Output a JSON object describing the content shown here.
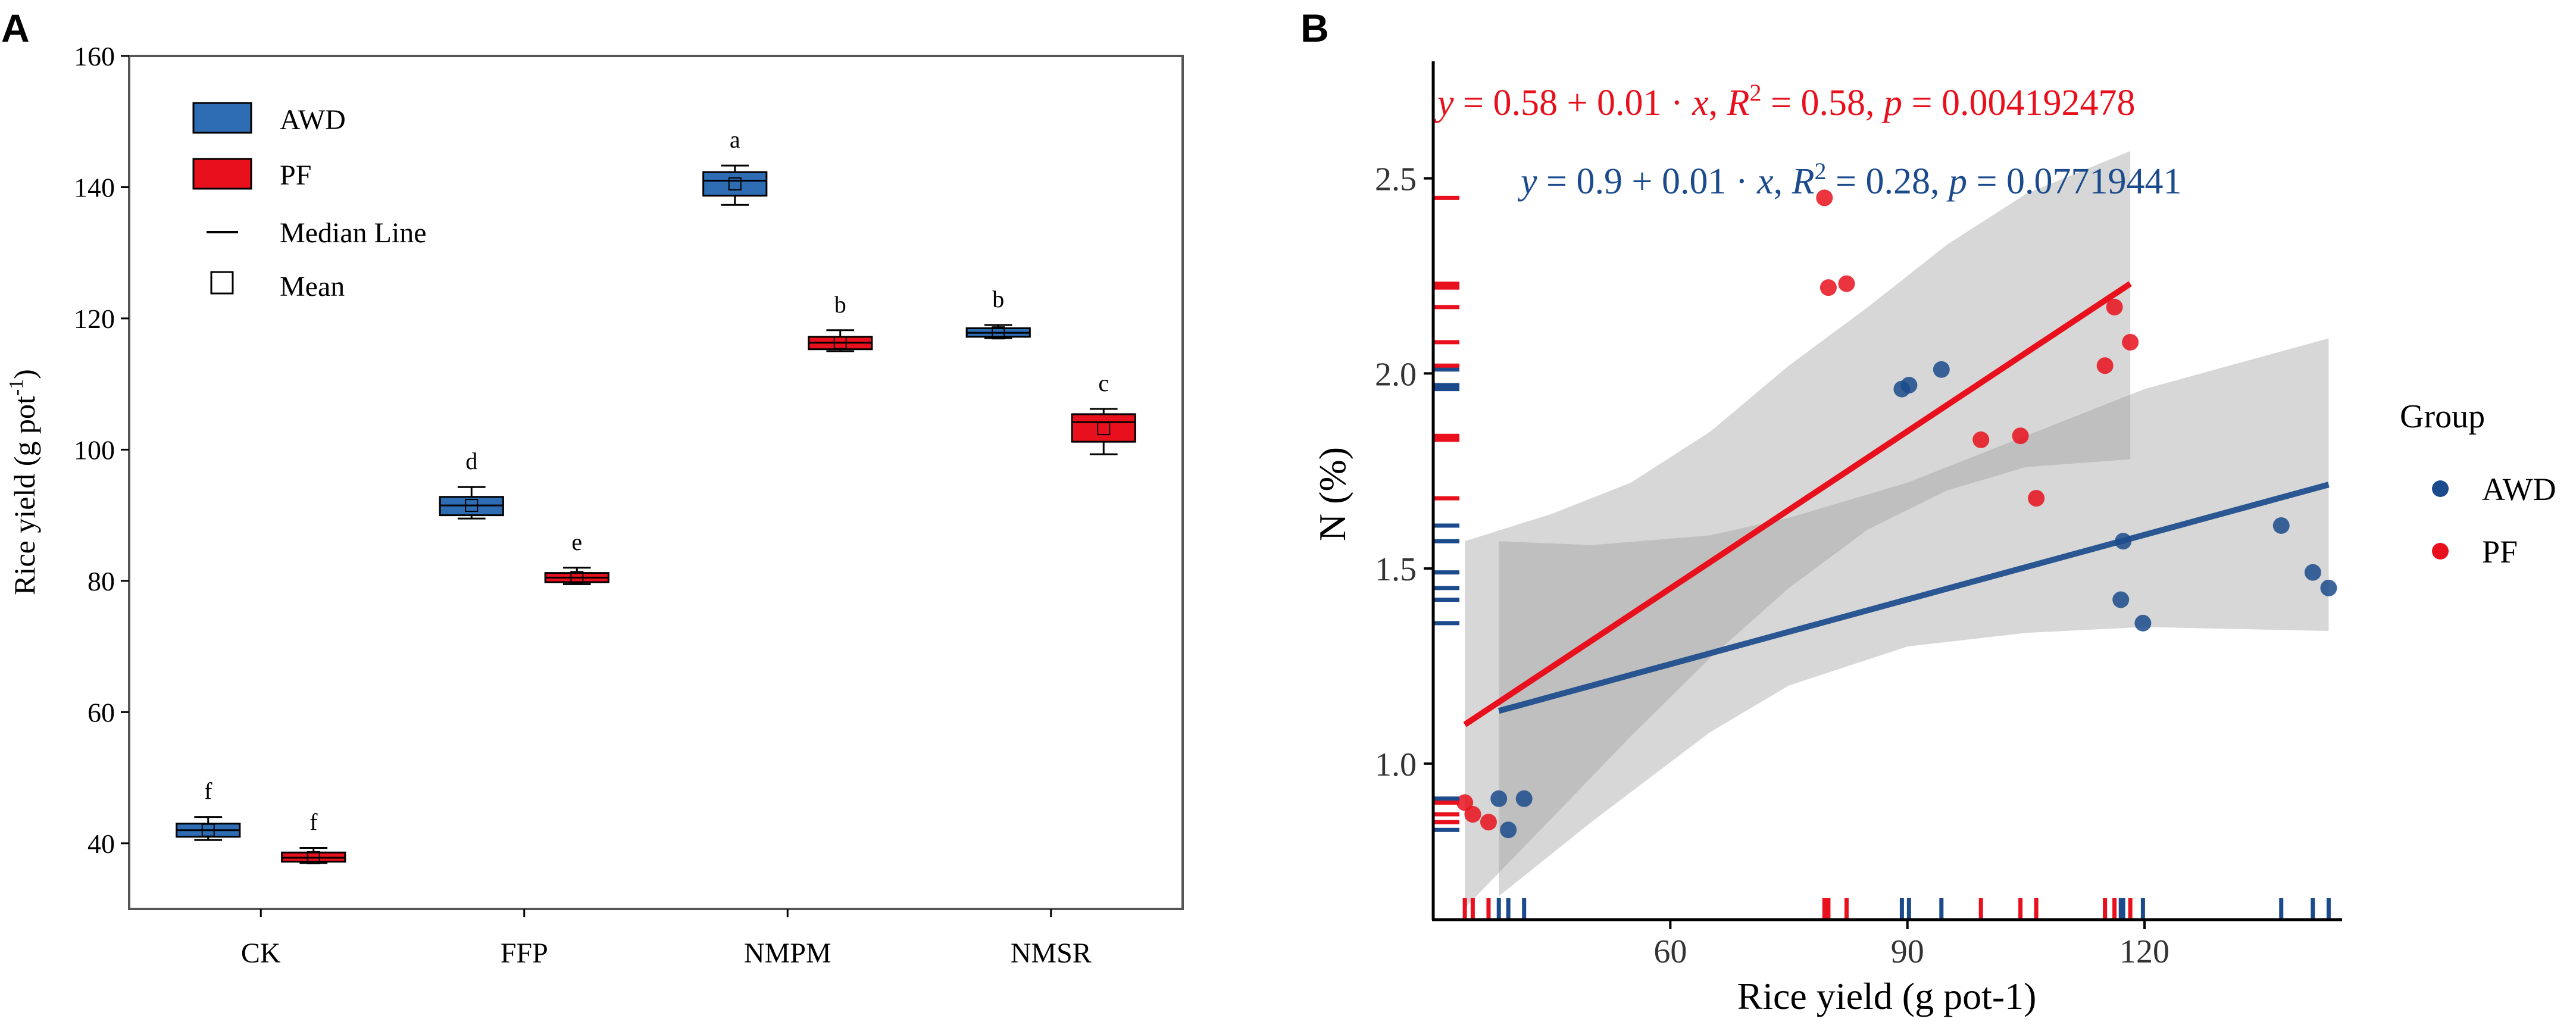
{
  "chart_data": [
    {
      "panel_label": "A",
      "type": "box",
      "ylabel": "Rice yield (g pot",
      "ylabel_sup": "-1",
      "ylabel_end": ")",
      "ylim": [
        30,
        160
      ],
      "yticks": [
        40,
        60,
        80,
        100,
        120,
        140,
        160
      ],
      "categories": [
        "CK",
        "FFP",
        "NMPM",
        "NMSR"
      ],
      "legend": {
        "placement": "top-left",
        "entries": [
          {
            "label": "AWD",
            "kind": "box",
            "color": "#2e6db4"
          },
          {
            "label": "PF",
            "kind": "box",
            "color": "#e8101c"
          },
          {
            "label": "Median Line",
            "kind": "line"
          },
          {
            "label": "Mean",
            "kind": "square"
          }
        ]
      },
      "series": [
        {
          "name": "AWD",
          "color": "#2e6db4",
          "boxes": [
            {
              "category": "CK",
              "min": 40.5,
              "q1": 41.0,
              "median": 42.0,
              "q3": 43.0,
              "max": 44.0,
              "mean": 42.0,
              "letter": "f"
            },
            {
              "category": "FFP",
              "min": 89.5,
              "q1": 90.0,
              "median": 91.5,
              "q3": 92.8,
              "max": 94.3,
              "mean": 91.5,
              "letter": "d"
            },
            {
              "category": "NMPM",
              "min": 137.3,
              "q1": 138.7,
              "median": 141.0,
              "q3": 142.3,
              "max": 143.3,
              "mean": 140.5,
              "letter": "a"
            },
            {
              "category": "NMSR",
              "min": 117.0,
              "q1": 117.2,
              "median": 117.8,
              "q3": 118.5,
              "max": 119.0,
              "mean": 117.8,
              "letter": "b"
            }
          ]
        },
        {
          "name": "PF",
          "color": "#e8101c",
          "boxes": [
            {
              "category": "CK",
              "min": 37.0,
              "q1": 37.2,
              "median": 37.8,
              "q3": 38.6,
              "max": 39.3,
              "mean": 37.8,
              "letter": "f"
            },
            {
              "category": "FFP",
              "min": 79.5,
              "q1": 79.8,
              "median": 80.5,
              "q3": 81.2,
              "max": 82.0,
              "mean": 80.5,
              "letter": "e"
            },
            {
              "category": "NMPM",
              "min": 115.0,
              "q1": 115.3,
              "median": 116.3,
              "q3": 117.2,
              "max": 118.2,
              "mean": 116.3,
              "letter": "b"
            },
            {
              "category": "NMSR",
              "min": 99.3,
              "q1": 101.2,
              "median": 104.2,
              "q3": 105.4,
              "max": 106.2,
              "mean": 103.2,
              "letter": "c"
            }
          ]
        }
      ]
    },
    {
      "panel_label": "B",
      "type": "scatter",
      "xlabel": "Rice yield  (g pot-1)",
      "ylabel": "N (%)",
      "xlim": [
        30,
        145
      ],
      "ylim": [
        0.6,
        2.8
      ],
      "xticks": [
        60,
        90,
        120
      ],
      "yticks": [
        1.0,
        1.5,
        2.0,
        2.5
      ],
      "legend": {
        "title": "Group",
        "placement": "right",
        "entries": [
          {
            "label": "AWD",
            "color": "#1b4b8c"
          },
          {
            "label": "PF",
            "color": "#e8101c"
          }
        ]
      },
      "series": [
        {
          "name": "AWD",
          "color": "#1b4b8c",
          "points": [
            {
              "x": 38.3,
              "y": 0.91
            },
            {
              "x": 39.5,
              "y": 0.83
            },
            {
              "x": 41.5,
              "y": 0.91
            },
            {
              "x": 89.3,
              "y": 1.96
            },
            {
              "x": 90.2,
              "y": 1.97
            },
            {
              "x": 94.3,
              "y": 2.01
            },
            {
              "x": 117.0,
              "y": 1.42
            },
            {
              "x": 117.3,
              "y": 1.57
            },
            {
              "x": 119.8,
              "y": 1.36
            },
            {
              "x": 137.3,
              "y": 1.61
            },
            {
              "x": 141.3,
              "y": 1.49
            },
            {
              "x": 143.3,
              "y": 1.45
            }
          ],
          "fit": {
            "x": [
              38.3,
              143.3
            ],
            "y": [
              1.135,
              1.715
            ]
          },
          "band": [
            {
              "x": 38.3,
              "lo": 0.66,
              "hi": 1.57
            },
            {
              "x": 50,
              "lo": 0.85,
              "hi": 1.56
            },
            {
              "x": 65,
              "lo": 1.08,
              "hi": 1.585
            },
            {
              "x": 75,
              "lo": 1.2,
              "hi": 1.63
            },
            {
              "x": 90,
              "lo": 1.3,
              "hi": 1.72
            },
            {
              "x": 105,
              "lo": 1.335,
              "hi": 1.84
            },
            {
              "x": 120,
              "lo": 1.35,
              "hi": 1.96
            },
            {
              "x": 143.3,
              "lo": 1.34,
              "hi": 2.09
            }
          ],
          "equation": {
            "y_label": "y",
            "intercept": "0.9",
            "slope": "0.01",
            "x_label": "x",
            "r2_label": "R",
            "r2_sup": "2",
            "r2": "0.28",
            "p_label": "p",
            "p": "0.07719441"
          }
        },
        {
          "name": "PF",
          "color": "#e8101c",
          "points": [
            {
              "x": 34.0,
              "y": 0.9
            },
            {
              "x": 35.0,
              "y": 0.87
            },
            {
              "x": 37.0,
              "y": 0.85
            },
            {
              "x": 79.5,
              "y": 2.45
            },
            {
              "x": 80.0,
              "y": 2.22
            },
            {
              "x": 82.3,
              "y": 2.23
            },
            {
              "x": 99.3,
              "y": 1.83
            },
            {
              "x": 104.3,
              "y": 1.84
            },
            {
              "x": 106.3,
              "y": 1.68
            },
            {
              "x": 115.0,
              "y": 2.02
            },
            {
              "x": 116.2,
              "y": 2.17
            },
            {
              "x": 118.2,
              "y": 2.08
            }
          ],
          "fit": {
            "x": [
              34.0,
              118.2
            ],
            "y": [
              1.1,
              2.23
            ]
          },
          "band": [
            {
              "x": 34.0,
              "lo": 0.63,
              "hi": 1.57
            },
            {
              "x": 45,
              "lo": 0.86,
              "hi": 1.64
            },
            {
              "x": 55,
              "lo": 1.07,
              "hi": 1.72
            },
            {
              "x": 65,
              "lo": 1.27,
              "hi": 1.85
            },
            {
              "x": 75,
              "lo": 1.45,
              "hi": 2.02
            },
            {
              "x": 85,
              "lo": 1.6,
              "hi": 2.17
            },
            {
              "x": 95,
              "lo": 1.7,
              "hi": 2.33
            },
            {
              "x": 105,
              "lo": 1.76,
              "hi": 2.46
            },
            {
              "x": 118.2,
              "lo": 1.78,
              "hi": 2.57
            }
          ],
          "equation": {
            "y_label": "y",
            "intercept": "0.58",
            "slope": "0.01",
            "x_label": "x",
            "r2_label": "R",
            "r2_sup": "2",
            "r2": "0.58",
            "p_label": "p",
            "p": "0.004192478"
          }
        }
      ]
    }
  ]
}
